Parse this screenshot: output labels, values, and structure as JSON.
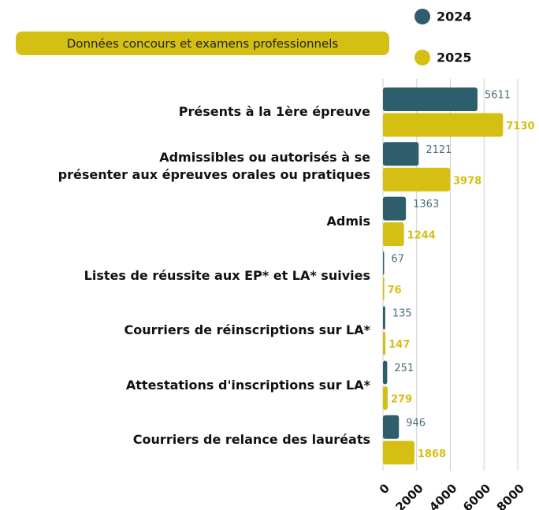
{
  "chart_data": {
    "type": "bar",
    "orientation": "horizontal",
    "title": "Données concours et examens professionnels",
    "categories": [
      "Présents à la 1ère épreuve",
      "Admissibles ou autorisés à se\nprésenter aux épreuves orales ou pratiques",
      "Admis",
      "Listes de réussite aux EP* et LA* suivies",
      "Courriers de réinscriptions sur LA*",
      "Attestations d'inscriptions sur LA*",
      "Courriers de relance des lauréats"
    ],
    "series": [
      {
        "name": "2024",
        "color": "#2e5e6b",
        "values": [
          5611,
          2121,
          1363,
          67,
          135,
          251,
          946
        ]
      },
      {
        "name": "2025",
        "color": "#d4bf12",
        "values": [
          7130,
          3978,
          1244,
          76,
          147,
          279,
          1868
        ]
      }
    ],
    "xlim": [
      0,
      8000
    ],
    "xticks": [
      0,
      2000,
      4000,
      6000,
      8000
    ],
    "grid": true
  }
}
